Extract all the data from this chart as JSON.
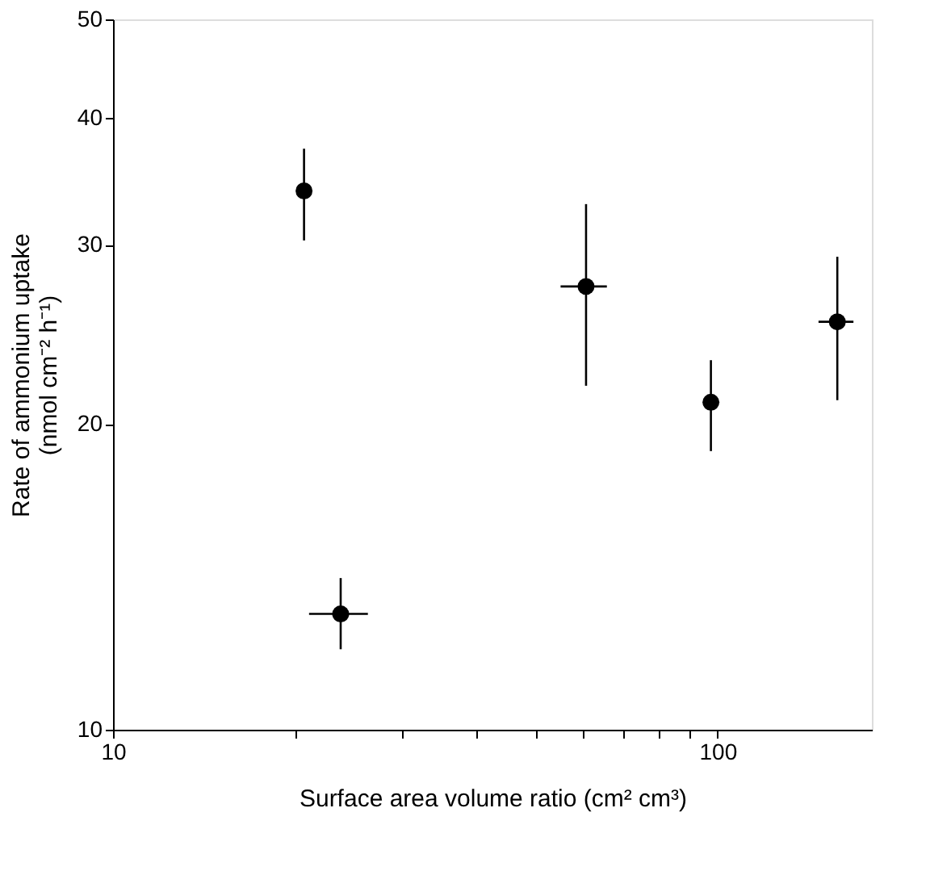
{
  "chart_data": {
    "type": "scatter",
    "xlabel": "Surface area   volume ratio (cm²   cm³)",
    "ylabel": [
      "Rate of ammonium uptake",
      "(nmol  cm⁻²  h⁻¹)"
    ],
    "x": [
      20.7,
      23.8,
      60.6,
      97.5,
      157.8
    ],
    "values": [
      33.9,
      13.0,
      27.3,
      21.0,
      25.2
    ],
    "errors": [
      [
        30.3,
        37.3
      ],
      [
        12.0,
        14.1
      ],
      [
        21.8,
        32.9
      ],
      [
        18.8,
        23.1
      ],
      [
        21.1,
        29.2
      ]
    ],
    "xerrors": [
      [
        20.2,
        21.3
      ],
      [
        21.1,
        26.4
      ],
      [
        55.0,
        65.6
      ],
      null,
      [
        146.9,
        167.8
      ]
    ],
    "color": "#000000",
    "marker": "circle",
    "log": "xy",
    "grid": false,
    "legend": false,
    "xlim": [
      10,
      180
    ],
    "xticks": [
      10,
      {
        "value": 20,
        "label": null
      },
      {
        "value": 30,
        "label": null
      },
      {
        "value": 40,
        "label": null
      },
      {
        "value": 50,
        "label": null
      },
      {
        "value": 60,
        "label": null
      },
      {
        "value": 70,
        "label": null
      },
      {
        "value": 80,
        "label": null
      },
      {
        "value": 90,
        "label": null
      },
      100
    ],
    "ylim": [
      10,
      50
    ],
    "yticks": [
      10,
      20,
      30,
      40,
      50
    ]
  }
}
